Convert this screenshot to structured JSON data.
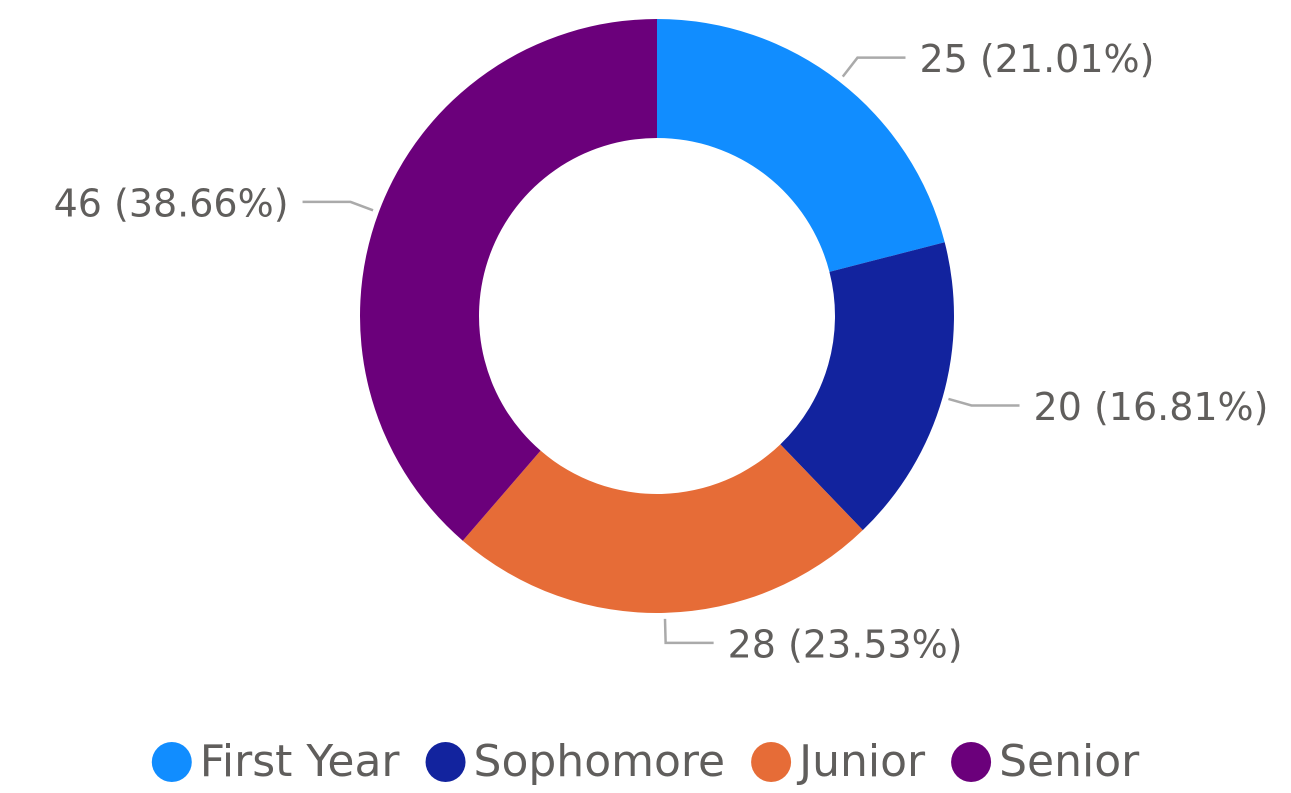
{
  "chart_data": {
    "type": "donut",
    "categories": [
      "First Year",
      "Sophomore",
      "Junior",
      "Senior"
    ],
    "values": [
      25,
      20,
      28,
      46
    ],
    "value_labels": [
      "25 (21.01%)",
      "20 (16.81%)",
      "28 (23.53%)",
      "46 (38.66%)"
    ],
    "colors": [
      "#118DFF",
      "#12239E",
      "#E66C37",
      "#6B007B"
    ],
    "legend": "bottom"
  }
}
